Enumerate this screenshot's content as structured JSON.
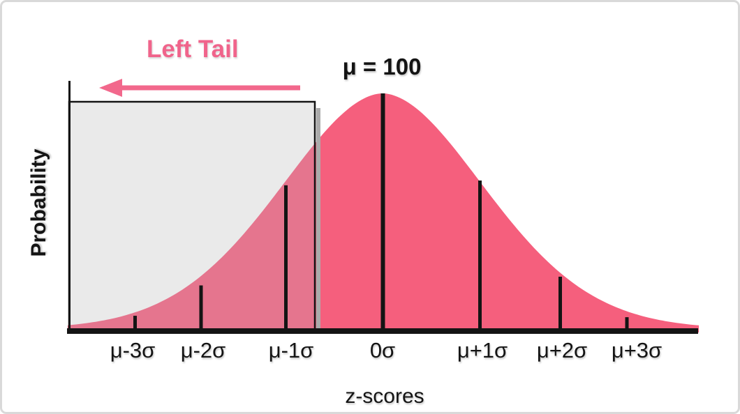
{
  "frame": {
    "border_color": "#D9D9D9",
    "background": "#FFFFFF"
  },
  "labels": {
    "left_tail": "Left Tail",
    "mean_annotation": "μ = 100",
    "y_axis": "Probability",
    "x_axis": "z-scores"
  },
  "colors": {
    "curve_pink": "#F55F7D",
    "muted_pink_in_overlay": "#E5758E",
    "overlay_gray": "#EAEAEA",
    "overlay_shadow_gray": "#ABABAB",
    "accent_pink": "#F2688C",
    "line_black": "#141414"
  },
  "chart_data": {
    "type": "area",
    "title": "μ = 100",
    "xlabel": "z-scores",
    "ylabel": "Probability",
    "distribution": "normal",
    "mean": 100,
    "grid": false,
    "legend": null,
    "x_tick_labels": [
      "μ-3σ",
      "μ-2σ",
      "μ-1σ",
      "0σ",
      "μ+1σ",
      "μ+2σ",
      "μ+3σ"
    ],
    "x_tick_z_values": [
      -3,
      -2,
      -1,
      0,
      1,
      2,
      3
    ],
    "relative_height_at_ticks": [
      0.056,
      0.185,
      0.61,
      1.0,
      0.63,
      0.222,
      0.05
    ],
    "shaded_region": {
      "label": "Left Tail",
      "side": "left",
      "from_z": "-infinity",
      "to_z": -0.7
    }
  }
}
